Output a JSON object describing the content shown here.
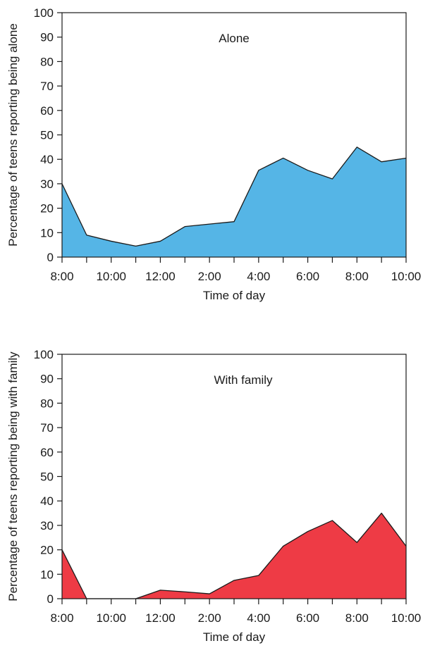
{
  "chart_data": [
    {
      "type": "area",
      "annotation": "Alone",
      "xlabel": "Time of day",
      "ylabel": "Percentage of teens reporting being alone",
      "ylim": [
        0,
        100
      ],
      "yticks": [
        "0",
        "10",
        "20",
        "30",
        "40",
        "50",
        "60",
        "70",
        "80",
        "90",
        "100"
      ],
      "x_tick_labels": [
        "8:00",
        "10:00",
        "12:00",
        "2:00",
        "4:00",
        "6:00",
        "8:00",
        "10:00"
      ],
      "hours": [
        "8",
        "9",
        "10",
        "11",
        "12",
        "1",
        "2",
        "3",
        "4",
        "5",
        "6",
        "7",
        "8",
        "9",
        "10"
      ],
      "values": [
        30,
        9,
        6.5,
        4.5,
        6.5,
        12.5,
        13.5,
        14.5,
        35.5,
        40.5,
        35.5,
        32,
        45,
        39,
        40.5
      ],
      "fill_color": "#55b5e6",
      "grid": false
    },
    {
      "type": "area",
      "annotation": "With family",
      "xlabel": "Time of day",
      "ylabel": "Percentage of teens reporting being with family",
      "ylim": [
        0,
        100
      ],
      "yticks": [
        "0",
        "10",
        "20",
        "30",
        "40",
        "50",
        "60",
        "70",
        "80",
        "90",
        "100"
      ],
      "x_tick_labels": [
        "8:00",
        "10:00",
        "12:00",
        "2:00",
        "4:00",
        "6:00",
        "8:00",
        "10:00"
      ],
      "hours": [
        "8",
        "9",
        "10",
        "11",
        "12",
        "1",
        "2",
        "3",
        "4",
        "5",
        "6",
        "7",
        "8",
        "9",
        "10"
      ],
      "values": [
        20,
        0,
        0,
        0,
        3.5,
        2.8,
        2,
        7.5,
        9.5,
        21.5,
        27.5,
        32,
        23,
        35,
        21.5
      ],
      "fill_color": "#ee3b45",
      "grid": false
    }
  ]
}
